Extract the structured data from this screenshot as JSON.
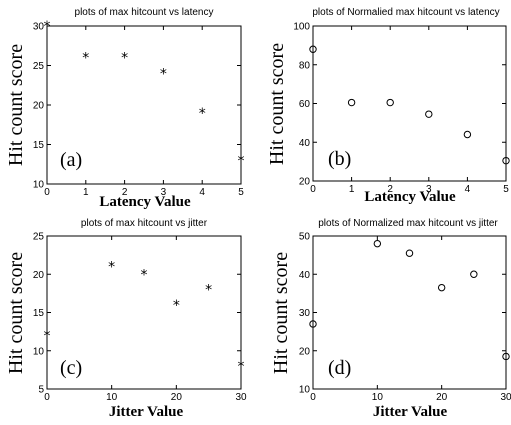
{
  "chart_data": [
    {
      "type": "scatter",
      "title": "plots of max hitcount vs latency",
      "xlabel": "Latency Value",
      "ylabel": "Hit count score",
      "panel_label": "(a)",
      "marker": "star",
      "xlim": [
        0,
        5
      ],
      "ylim": [
        10,
        30
      ],
      "xticks": [
        0,
        1,
        2,
        3,
        4,
        5
      ],
      "yticks": [
        10,
        15,
        20,
        25,
        30
      ],
      "x": [
        0,
        1,
        2,
        3,
        4,
        5
      ],
      "y": [
        30,
        26,
        26,
        24,
        19,
        13
      ]
    },
    {
      "type": "scatter",
      "title": "plots of Normalied max hitcount vs latency",
      "xlabel": "Latency Value",
      "ylabel": "Hit count score",
      "panel_label": "(b)",
      "marker": "circle",
      "xlim": [
        0,
        5
      ],
      "ylim": [
        20,
        100
      ],
      "xticks": [
        0,
        1,
        2,
        3,
        4,
        5
      ],
      "yticks": [
        20,
        40,
        60,
        80,
        100
      ],
      "x": [
        0,
        1,
        2,
        3,
        4,
        5
      ],
      "y": [
        88,
        60.5,
        60.5,
        54.5,
        44,
        30.5
      ]
    },
    {
      "type": "scatter",
      "title": "plots of max hitcount vs jitter",
      "xlabel": "Jitter Value",
      "ylabel": "Hit count score",
      "panel_label": "(c)",
      "marker": "star",
      "xlim": [
        0,
        30
      ],
      "ylim": [
        5,
        25
      ],
      "xticks": [
        0,
        10,
        20,
        30
      ],
      "yticks": [
        5,
        10,
        15,
        20,
        25
      ],
      "x": [
        0,
        10,
        15,
        20,
        25,
        30
      ],
      "y": [
        12,
        21,
        20,
        16,
        18,
        8
      ]
    },
    {
      "type": "scatter",
      "title": "plots of Normalized max hitcount vs jitter",
      "xlabel": "Jitter Value",
      "ylabel": "Hit count score",
      "panel_label": "(d)",
      "marker": "circle",
      "xlim": [
        0,
        30
      ],
      "ylim": [
        10,
        50
      ],
      "xticks": [
        0,
        10,
        20,
        30
      ],
      "yticks": [
        10,
        20,
        30,
        40,
        50
      ],
      "x": [
        0,
        10,
        15,
        20,
        25,
        30
      ],
      "y": [
        27,
        48,
        45.5,
        36.5,
        40,
        18.5
      ]
    }
  ]
}
